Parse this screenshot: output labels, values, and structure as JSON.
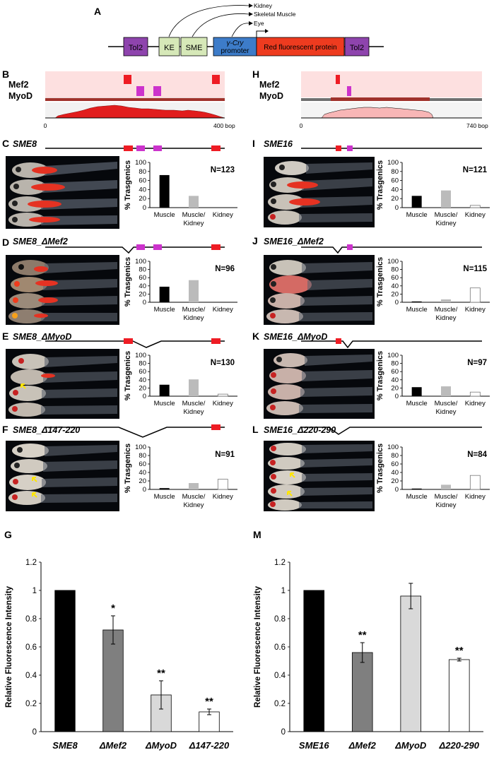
{
  "panel_letters": {
    "A": "A",
    "B": "B",
    "C": "C",
    "D": "D",
    "E": "E",
    "F": "F",
    "G": "G",
    "H": "H",
    "I": "I",
    "J": "J",
    "K": "K",
    "L": "L",
    "M": "M"
  },
  "construct": {
    "boxes": [
      "Tol2",
      "KE",
      "SME",
      "γ-Cry",
      "promoter",
      "Red fluorescent protein",
      "Tol2"
    ],
    "targets": [
      "Kidney",
      "Skeletal Muscle",
      "Eye"
    ],
    "colors": {
      "tol2": "#8e44ad",
      "ke": "#d6e8b8",
      "sme": "#d6e8b8",
      "promoter": "#3d7cc9",
      "rfp": "#ee3b1f"
    }
  },
  "binding": {
    "mef2_label": "Mef2",
    "myod_label": "MyoD",
    "left_axis": {
      "start": "0",
      "end": "400 bop"
    },
    "right_axis": {
      "start": "0",
      "end": "740 bop"
    },
    "colors": {
      "mef2": "#ee1c24",
      "myod": "#cc33cc",
      "band": "#fde0e0",
      "bar": "#a0322c"
    }
  },
  "yaxis_label": "% Trasgenics",
  "categories": [
    "Muscle",
    "Muscle/",
    "Kidney",
    "Kidney"
  ],
  "bar_colors": [
    "#000000",
    "#bbbbbb",
    "#ffffff"
  ],
  "constructs": [
    {
      "label": "SME8"
    },
    {
      "label": "SME8_ΔMef2"
    },
    {
      "label": "SME8_ΔMyoD"
    },
    {
      "label": "SME8_Δ147-220"
    },
    {
      "label": "SME16"
    },
    {
      "label": "SME16_ΔMef2"
    },
    {
      "label": "SME16_ΔMyoD"
    },
    {
      "label": "SME16_Δ220-290"
    }
  ],
  "chart_data": [
    {
      "type": "bar",
      "panel": "C",
      "categories": [
        "Muscle",
        "Muscle/ Kidney",
        "Kidney"
      ],
      "values": [
        72,
        26,
        0
      ],
      "annotation": "N=123",
      "ylabel": "% Trasgenics",
      "ylim": [
        0,
        100
      ],
      "yticks": [
        "0",
        "20",
        "40",
        "60",
        "80",
        "100"
      ]
    },
    {
      "type": "bar",
      "panel": "D",
      "categories": [
        "Muscle",
        "Muscle/ Kidney",
        "Kidney"
      ],
      "values": [
        38,
        54,
        0
      ],
      "annotation": "N=96",
      "ylabel": "% Trasgenics",
      "ylim": [
        0,
        100
      ],
      "yticks": [
        "0",
        "20",
        "40",
        "60",
        "80",
        "100"
      ]
    },
    {
      "type": "bar",
      "panel": "E",
      "categories": [
        "Muscle",
        "Muscle/ Kidney",
        "Kidney"
      ],
      "values": [
        28,
        41,
        5
      ],
      "annotation": "N=130",
      "ylabel": "% Trasgenics",
      "ylim": [
        0,
        100
      ],
      "yticks": [
        "0",
        "20",
        "40",
        "60",
        "80",
        "100"
      ]
    },
    {
      "type": "bar",
      "panel": "F",
      "categories": [
        "Muscle",
        "Muscle/ Kidney",
        "Kidney"
      ],
      "values": [
        3,
        15,
        24
      ],
      "annotation": "N=91",
      "ylabel": "% Trasgenics",
      "ylim": [
        0,
        100
      ],
      "yticks": [
        "0",
        "20",
        "40",
        "60",
        "80",
        "100"
      ]
    },
    {
      "type": "bar",
      "panel": "I",
      "categories": [
        "Muscle",
        "Muscle/ Kidney",
        "Kidney"
      ],
      "values": [
        26,
        38,
        5
      ],
      "annotation": "N=121",
      "ylabel": "% Trasgenics",
      "ylim": [
        0,
        100
      ],
      "yticks": [
        "0",
        "20",
        "40",
        "60",
        "80",
        "100"
      ]
    },
    {
      "type": "bar",
      "panel": "J",
      "categories": [
        "Muscle",
        "Muscle/ Kidney",
        "Kidney"
      ],
      "values": [
        2,
        7,
        35
      ],
      "annotation": "N=115",
      "ylabel": "% Trasgenics",
      "ylim": [
        0,
        100
      ],
      "yticks": [
        "0",
        "20",
        "40",
        "60",
        "80",
        "100"
      ]
    },
    {
      "type": "bar",
      "panel": "K",
      "categories": [
        "Muscle",
        "Muscle/ Kidney",
        "Kidney"
      ],
      "values": [
        22,
        24,
        10
      ],
      "annotation": "N=97",
      "ylabel": "% Trasgenics",
      "ylim": [
        0,
        100
      ],
      "yticks": [
        "0",
        "20",
        "40",
        "60",
        "80",
        "100"
      ]
    },
    {
      "type": "bar",
      "panel": "L",
      "categories": [
        "Muscle",
        "Muscle/ Kidney",
        "Kidney"
      ],
      "values": [
        2,
        11,
        33
      ],
      "annotation": "N=84",
      "ylabel": "% Trasgenics",
      "ylim": [
        0,
        100
      ],
      "yticks": [
        "0",
        "20",
        "40",
        "60",
        "80",
        "100"
      ]
    },
    {
      "type": "bar",
      "panel": "G",
      "categories": [
        "SME8",
        "ΔMef2",
        "ΔMyoD",
        "Δ147-220"
      ],
      "values": [
        1.0,
        0.72,
        0.26,
        0.14
      ],
      "errors": [
        0,
        0.1,
        0.1,
        0.02
      ],
      "significance": [
        "",
        "*",
        "**",
        "**"
      ],
      "colors": [
        "#000000",
        "#7f7f7f",
        "#d9d9d9",
        "#ffffff"
      ],
      "ylabel": "Relative Fluorescence Intensity",
      "ylim": [
        0,
        1.2
      ],
      "yticks": [
        "0",
        "0.2",
        "0.4",
        "0.6",
        "0.8",
        "1",
        "1.2"
      ]
    },
    {
      "type": "bar",
      "panel": "M",
      "categories": [
        "SME16",
        "ΔMef2",
        "ΔMyoD",
        "Δ220-290"
      ],
      "values": [
        1.0,
        0.56,
        0.96,
        0.51
      ],
      "errors": [
        0,
        0.07,
        0.09,
        0.01
      ],
      "significance": [
        "",
        "**",
        "",
        "**"
      ],
      "colors": [
        "#000000",
        "#7f7f7f",
        "#d9d9d9",
        "#ffffff"
      ],
      "ylabel": "Relative Fluorescence Intensity",
      "ylim": [
        0,
        1.2
      ],
      "yticks": [
        "0",
        "0.2",
        "0.4",
        "0.6",
        "0.8",
        "1",
        "1.2"
      ]
    }
  ]
}
